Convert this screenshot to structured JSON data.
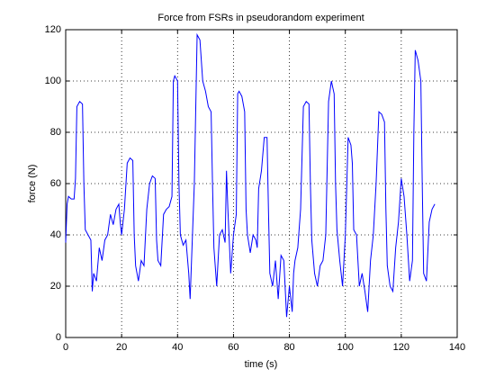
{
  "chart_data": {
    "type": "line",
    "title": "Force from FSRs in pseudorandom experiment",
    "xlabel": "time (s)",
    "ylabel": "force (N)",
    "xlim": [
      0,
      140
    ],
    "xticks": [
      0,
      20,
      40,
      60,
      80,
      100,
      120,
      140
    ],
    "ylim": [
      0,
      120
    ],
    "yticks": [
      0,
      20,
      40,
      60,
      80,
      100,
      120
    ],
    "grid": true,
    "x": [
      0,
      0.5,
      1,
      2,
      3,
      3.5,
      4,
      5,
      6,
      6.5,
      7,
      8,
      9,
      9.5,
      10,
      11,
      12,
      13,
      14,
      15,
      16,
      17,
      18,
      19,
      19.5,
      20,
      21,
      22,
      23,
      24,
      24.5,
      25,
      26,
      27,
      28,
      29,
      30,
      31,
      32,
      32.5,
      33,
      34,
      35,
      36,
      37,
      38,
      38.5,
      39,
      40,
      40.5,
      41,
      42,
      43,
      44,
      44.5,
      45,
      46,
      47,
      48,
      49,
      50,
      51,
      52,
      52.5,
      53,
      54,
      55,
      56,
      57,
      57.5,
      58,
      59,
      60,
      61,
      61.5,
      62,
      63,
      64,
      64.5,
      65,
      66,
      67,
      68,
      68.5,
      69,
      70,
      71,
      72,
      72.5,
      73,
      74,
      75,
      76,
      77,
      78,
      79,
      80,
      81,
      81.5,
      82,
      83,
      84,
      85,
      86,
      87,
      87.5,
      88,
      89,
      90,
      91,
      92,
      93,
      94,
      95,
      96,
      96.5,
      97,
      98,
      99,
      100,
      101,
      102,
      102.5,
      103,
      104,
      105,
      106,
      107,
      108,
      109,
      110,
      111,
      112,
      113,
      114,
      114.5,
      115,
      116,
      117,
      118,
      119,
      120,
      121,
      122,
      123,
      124,
      124.5,
      125,
      126,
      127,
      127.5,
      128,
      129,
      130,
      131,
      132
    ],
    "series": [
      {
        "name": "force",
        "color": "#0000ff",
        "values": [
          37,
          52,
          55,
          54,
          54,
          62,
          90,
          92,
          91,
          60,
          42,
          40,
          38,
          18,
          25,
          22,
          35,
          30,
          38,
          40,
          48,
          44,
          50,
          52,
          45,
          40,
          50,
          68,
          70,
          69,
          40,
          28,
          22,
          30,
          28,
          50,
          60,
          63,
          62,
          38,
          30,
          28,
          48,
          50,
          51,
          55,
          100,
          102,
          100,
          60,
          40,
          36,
          38,
          25,
          15,
          30,
          60,
          118,
          116,
          100,
          96,
          90,
          88,
          60,
          35,
          20,
          40,
          42,
          37,
          65,
          50,
          25,
          40,
          48,
          95,
          96,
          94,
          88,
          50,
          40,
          33,
          40,
          38,
          35,
          58,
          65,
          78,
          78,
          50,
          25,
          20,
          30,
          15,
          32,
          30,
          8,
          20,
          10,
          25,
          30,
          35,
          50,
          90,
          92,
          91,
          60,
          38,
          25,
          20,
          28,
          30,
          40,
          92,
          100,
          95,
          60,
          42,
          30,
          20,
          40,
          78,
          75,
          68,
          42,
          40,
          20,
          25,
          18,
          10,
          30,
          40,
          60,
          88,
          87,
          84,
          50,
          28,
          20,
          18,
          35,
          45,
          62,
          55,
          40,
          22,
          30,
          80,
          112,
          108,
          100,
          60,
          25,
          22,
          45,
          50,
          52
        ]
      }
    ]
  }
}
